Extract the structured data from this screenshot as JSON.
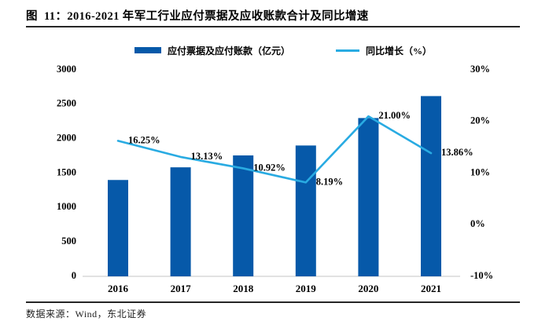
{
  "title": "图  11：2016-2021 年军工行业应付票据及应收账款合计及同比增速",
  "source": "数据来源：Wind，东北证券",
  "legend": [
    {
      "label": "应付票据及应付账款（亿元）",
      "type": "bar"
    },
    {
      "label": "同比增长（%）",
      "type": "line"
    }
  ],
  "colors": {
    "bar": "#0659A9",
    "line": "#29ABE2",
    "axis_line": "#D9D9D9",
    "text": "#000000"
  },
  "chart_data": {
    "type": "bar+line combo",
    "categories": [
      "2016",
      "2017",
      "2018",
      "2019",
      "2020",
      "2021"
    ],
    "series": [
      {
        "name": "应付票据及应付账款（亿元）",
        "type": "bar",
        "axis": "left",
        "values": [
          1400,
          1584,
          1757,
          1901,
          2300,
          2619
        ]
      },
      {
        "name": "同比增长（%）",
        "type": "line",
        "axis": "right",
        "values": [
          16.25,
          13.13,
          10.92,
          8.19,
          21.0,
          13.86
        ],
        "point_labels": [
          "16.25%",
          "13.13%",
          "10.92%",
          "8.19%",
          "21.00%",
          "13.86%"
        ]
      }
    ],
    "left_axis": {
      "min": 0,
      "max": 3000,
      "step": 500,
      "ticks": [
        "0",
        "500",
        "1000",
        "1500",
        "2000",
        "2500",
        "3000"
      ]
    },
    "right_axis": {
      "min": -10,
      "max": 30,
      "step": 10,
      "ticks": [
        "-10%",
        "0%",
        "10%",
        "20%",
        "30%"
      ]
    },
    "grid": false,
    "legend_position": "top"
  }
}
